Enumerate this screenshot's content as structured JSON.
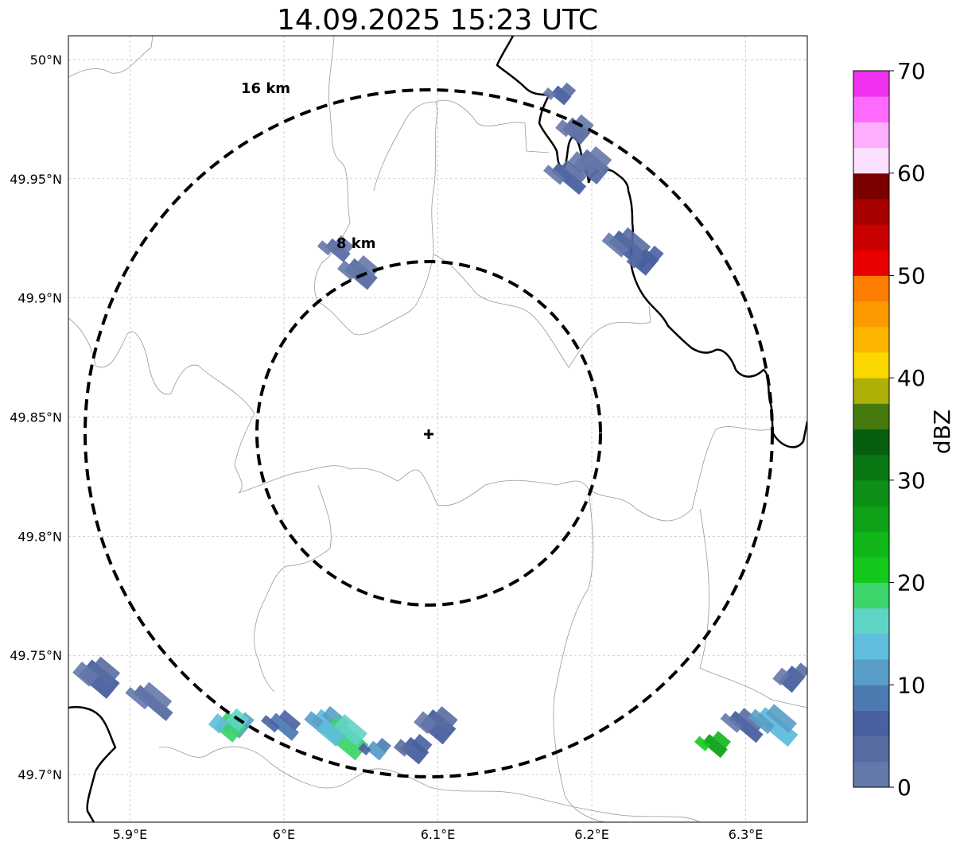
{
  "title": "14.09.2025 15:23 UTC",
  "map": {
    "lon_range": [
      5.86,
      6.34
    ],
    "lat_range": [
      49.68,
      50.01
    ],
    "lon_ticks": [
      {
        "value": 5.9,
        "label": "5.9°E"
      },
      {
        "value": 6.0,
        "label": "6°E"
      },
      {
        "value": 6.1,
        "label": "6.1°E"
      },
      {
        "value": 6.2,
        "label": "6.2°E"
      },
      {
        "value": 6.3,
        "label": "6.3°E"
      }
    ],
    "lat_ticks": [
      {
        "value": 50.0,
        "label": "50°N"
      },
      {
        "value": 49.95,
        "label": "49.95°N"
      },
      {
        "value": 49.9,
        "label": "49.9°N"
      },
      {
        "value": 49.85,
        "label": "49.85°N"
      },
      {
        "value": 49.8,
        "label": "49.8°N"
      },
      {
        "value": 49.75,
        "label": "49.75°N"
      },
      {
        "value": 49.7,
        "label": "49.7°N"
      }
    ],
    "gridlines": true,
    "center": {
      "lon": 6.095,
      "lat": 49.843
    },
    "rings": [
      {
        "radius_km": 8,
        "label": "8 km"
      },
      {
        "radius_km": 16,
        "label": "16 km"
      }
    ],
    "echoes": [
      {
        "lon": 6.18,
        "lat": 49.985,
        "dbz": 5
      },
      {
        "lon": 6.19,
        "lat": 49.97,
        "dbz": 3
      },
      {
        "lon": 6.2,
        "lat": 49.955,
        "dbz": 4
      },
      {
        "lon": 6.185,
        "lat": 49.95,
        "dbz": 6
      },
      {
        "lon": 6.225,
        "lat": 49.92,
        "dbz": 5
      },
      {
        "lon": 6.235,
        "lat": 49.915,
        "dbz": 7
      },
      {
        "lon": 6.035,
        "lat": 49.92,
        "dbz": 4
      },
      {
        "lon": 6.05,
        "lat": 49.91,
        "dbz": 3
      },
      {
        "lon": 5.88,
        "lat": 49.74,
        "dbz": 6
      },
      {
        "lon": 5.915,
        "lat": 49.73,
        "dbz": 4
      },
      {
        "lon": 5.97,
        "lat": 49.72,
        "dbz": 12
      },
      {
        "lon": 5.965,
        "lat": 49.72,
        "dbz": 18
      },
      {
        "lon": 6.0,
        "lat": 49.72,
        "dbz": 9
      },
      {
        "lon": 6.03,
        "lat": 49.72,
        "dbz": 14
      },
      {
        "lon": 6.04,
        "lat": 49.715,
        "dbz": 18
      },
      {
        "lon": 6.06,
        "lat": 49.71,
        "dbz": 11
      },
      {
        "lon": 6.085,
        "lat": 49.71,
        "dbz": 7
      },
      {
        "lon": 6.1,
        "lat": 49.72,
        "dbz": 5
      },
      {
        "lon": 6.3,
        "lat": 49.72,
        "dbz": 6
      },
      {
        "lon": 6.32,
        "lat": 49.72,
        "dbz": 14
      },
      {
        "lon": 6.33,
        "lat": 49.74,
        "dbz": 5
      },
      {
        "lon": 6.28,
        "lat": 49.712,
        "dbz": 26
      }
    ]
  },
  "colorbar": {
    "label": "dBZ",
    "min": 0,
    "max": 70,
    "ticks": [
      0,
      10,
      20,
      30,
      40,
      50,
      60,
      70
    ],
    "colors": [
      "#6578aa",
      "#586ca2",
      "#4960a1",
      "#4d7bb1",
      "#589ec8",
      "#60bddd",
      "#5fd4c4",
      "#3dd56b",
      "#13c91c",
      "#11b619",
      "#0fa218",
      "#0d8e16",
      "#0b7714",
      "#065f0f",
      "#467a0f",
      "#aeb008",
      "#fdd700",
      "#fdb600",
      "#fd9a00",
      "#fd7d00",
      "#e80000",
      "#c80000",
      "#a60000",
      "#7a0000",
      "#fde0fd",
      "#fdaffd",
      "#fd6afd",
      "#f032f0"
    ]
  }
}
